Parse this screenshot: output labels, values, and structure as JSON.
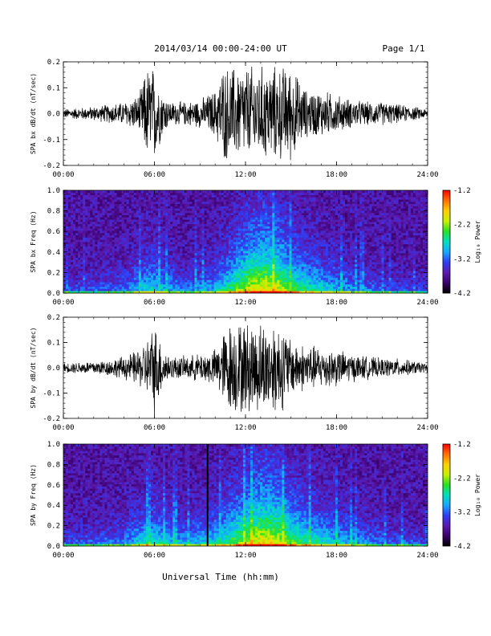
{
  "header": {
    "title": "2014/03/14  00:00-24:00 UT",
    "page": "Page 1/1"
  },
  "footer": {
    "xlabel": "Universal Time (hh:mm)"
  },
  "colorbar": {
    "label": "Log₁₀ Power",
    "ticks": [
      "-1.2",
      "-2.2",
      "-3.2",
      "-4.2"
    ],
    "range": [
      -4.2,
      -1.2
    ],
    "colors": [
      "#000000",
      "#3a006a",
      "#5a1ab0",
      "#2f3df5",
      "#18a8ff",
      "#00e0c0",
      "#28e028",
      "#c8f000",
      "#ffd000",
      "#ff7000",
      "#ff0000"
    ]
  },
  "chart_data": [
    {
      "type": "line",
      "ylabel": "SPA bx dB/dt (nT/sec)",
      "xlim": [
        0,
        24
      ],
      "ylim": [
        -0.2,
        0.2
      ],
      "yticks": [
        "0.2",
        "0.1",
        "0.0",
        "-0.1",
        "-0.2"
      ],
      "xticks": [
        "00:00",
        "06:00",
        "12:00",
        "18:00",
        "24:00"
      ],
      "series": [
        {
          "color": "#000000",
          "x": [
            0,
            1,
            2,
            3,
            4,
            5,
            5.5,
            6,
            6.5,
            7,
            8,
            9,
            10,
            10.5,
            11,
            12,
            13,
            14,
            14.5,
            15,
            16,
            17,
            18,
            19,
            20,
            21,
            22,
            23,
            24
          ],
          "envelope": [
            0.02,
            0.025,
            0.03,
            0.04,
            0.05,
            0.08,
            0.2,
            0.2,
            0.1,
            0.05,
            0.05,
            0.06,
            0.1,
            0.2,
            0.2,
            0.2,
            0.2,
            0.2,
            0.2,
            0.2,
            0.1,
            0.1,
            0.08,
            0.06,
            0.05,
            0.05,
            0.04,
            0.03,
            0.02
          ]
        }
      ]
    },
    {
      "type": "heatmap",
      "ylabel": "SPA bx Freq (Hz)",
      "xlim": [
        0,
        24
      ],
      "ylim": [
        0.0,
        1.0
      ],
      "yticks": [
        "1.0",
        "0.8",
        "0.6",
        "0.4",
        "0.2",
        "0.0"
      ],
      "xticks": [
        "00:00",
        "06:00",
        "12:00",
        "18:00",
        "24:00"
      ],
      "colorscale": "Log10 Power",
      "zlim": [
        -4.2,
        -1.2
      ],
      "activity_x": [
        0,
        2,
        4,
        5.5,
        6,
        8,
        10,
        11,
        12,
        13,
        14,
        15,
        16,
        18,
        20,
        22,
        24
      ],
      "activity": [
        0.1,
        0.12,
        0.2,
        0.45,
        0.45,
        0.2,
        0.35,
        0.6,
        0.85,
        1.0,
        0.95,
        0.7,
        0.55,
        0.35,
        0.2,
        0.1,
        0.08
      ]
    },
    {
      "type": "line",
      "ylabel": "SPA by dB/dt (nT/sec)",
      "xlim": [
        0,
        24
      ],
      "ylim": [
        -0.2,
        0.2
      ],
      "yticks": [
        "0.2",
        "0.1",
        "0.0",
        "-0.1",
        "-0.2"
      ],
      "xticks": [
        "00:00",
        "06:00",
        "12:00",
        "18:00",
        "24:00"
      ],
      "series": [
        {
          "color": "#000000",
          "x": [
            0,
            1,
            2,
            3,
            4,
            5,
            5.5,
            6,
            6.5,
            7,
            8,
            9,
            10,
            10.5,
            11,
            12,
            13,
            14,
            14.5,
            15,
            16,
            17,
            18,
            19,
            20,
            21,
            22,
            23,
            24
          ],
          "envelope": [
            0.02,
            0.025,
            0.03,
            0.035,
            0.05,
            0.08,
            0.12,
            0.2,
            0.1,
            0.05,
            0.05,
            0.06,
            0.08,
            0.15,
            0.2,
            0.2,
            0.2,
            0.2,
            0.18,
            0.12,
            0.1,
            0.09,
            0.08,
            0.06,
            0.05,
            0.04,
            0.04,
            0.03,
            0.02
          ]
        }
      ]
    },
    {
      "type": "heatmap",
      "ylabel": "SPA by Freq (Hz)",
      "xlim": [
        0,
        24
      ],
      "ylim": [
        0.0,
        1.0
      ],
      "yticks": [
        "1.0",
        "0.8",
        "0.6",
        "0.4",
        "0.2",
        "0.0"
      ],
      "xticks": [
        "00:00",
        "06:00",
        "12:00",
        "18:00",
        "24:00"
      ],
      "colorscale": "Log10 Power",
      "zlim": [
        -4.2,
        -1.2
      ],
      "activity_x": [
        0,
        2,
        4,
        5.5,
        6,
        8,
        10,
        11,
        12,
        13,
        14,
        15,
        16,
        18,
        20,
        22,
        24
      ],
      "activity": [
        0.12,
        0.15,
        0.25,
        0.5,
        0.5,
        0.3,
        0.45,
        0.65,
        0.85,
        1.0,
        0.95,
        0.75,
        0.6,
        0.4,
        0.25,
        0.15,
        0.1
      ],
      "gap_line_x": 9.5
    }
  ]
}
